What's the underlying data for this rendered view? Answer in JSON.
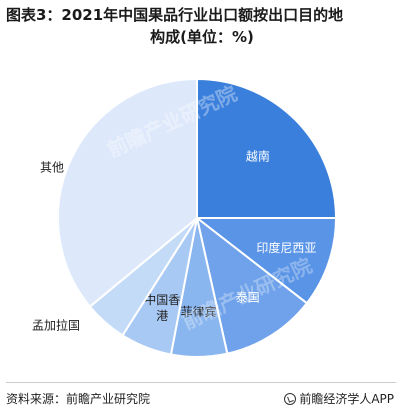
{
  "title": {
    "line1": "图表3：2021年中国果品行业出口额按出口目的地",
    "line2": "构成(单位：%)"
  },
  "chart_data": {
    "type": "pie",
    "start_angle_deg": 0,
    "direction": "clockwise",
    "series": [
      {
        "name": "越南",
        "value": 25.0,
        "color": "#3a7fdc",
        "label_color": "#ffffff",
        "label_inside": true
      },
      {
        "name": "印度尼西亚",
        "value": 10.5,
        "color": "#5a94e6",
        "label_color": "#ffffff",
        "label_inside": true
      },
      {
        "name": "泰国",
        "value": 11.0,
        "color": "#6fa2ea",
        "label_color": "#ffffff",
        "label_inside": true
      },
      {
        "name": "菲律宾",
        "value": 6.5,
        "color": "#8ab6ef",
        "label_color": "#222222",
        "label_inside": true
      },
      {
        "name": "中国香港",
        "value": 6.0,
        "color": "#a8c9f4",
        "label_color": "#222222",
        "label_inside": true
      },
      {
        "name": "孟加拉国",
        "value": 5.0,
        "color": "#c4dbf8",
        "label_color": "#222222",
        "label_inside": false
      },
      {
        "name": "其他",
        "value": 36.0,
        "color": "#dde9fb",
        "label_color": "#222222",
        "label_inside": false
      }
    ]
  },
  "watermark": "前瞻产业研究院",
  "footer": {
    "source": "资料来源：前瞻产业研究院",
    "brand": "前瞻经济学人APP"
  }
}
